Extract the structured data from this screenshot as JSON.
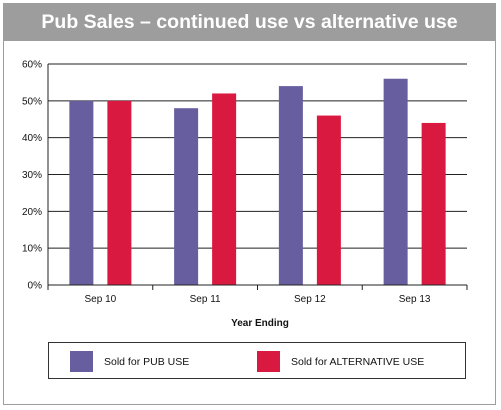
{
  "chart_data": {
    "type": "bar",
    "title": "Pub Sales – continued use vs alternative use",
    "xlabel": "Year Ending",
    "ylabel": "",
    "categories": [
      "Sep 10",
      "Sep 11",
      "Sep 12",
      "Sep 13"
    ],
    "ylim": [
      0,
      60
    ],
    "yticks": [
      0,
      10,
      20,
      30,
      40,
      50,
      60
    ],
    "ytick_labels": [
      "0%",
      "10%",
      "20%",
      "30%",
      "40%",
      "50%",
      "60%"
    ],
    "series": [
      {
        "name": "Sold for PUB USE",
        "values": [
          50,
          48,
          54,
          56
        ],
        "color": "#665e9f"
      },
      {
        "name": "Sold for ALTERNATIVE USE",
        "values": [
          50,
          52,
          46,
          44
        ],
        "color": "#d9193f"
      }
    ],
    "grid": true,
    "legend_position": "bottom"
  },
  "colors": {
    "title_bar": "#9d9d9d",
    "title_text": "#ffffff",
    "axis": "#222222"
  }
}
